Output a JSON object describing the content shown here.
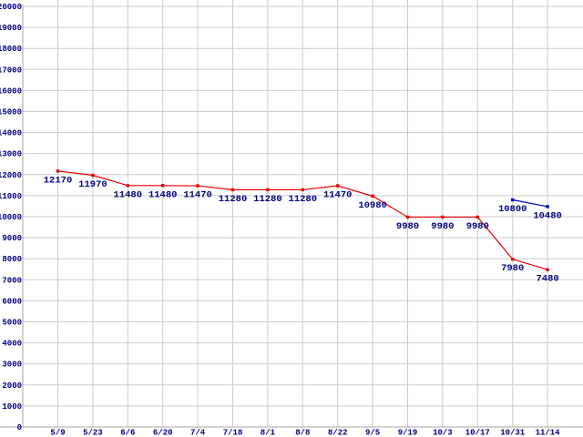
{
  "chart_style": {
    "background_color": "#ffffff",
    "grid_color": "#cbcbcb",
    "axis_color": "#a6a6a6",
    "label_color": "#000080"
  },
  "chart_data": {
    "type": "line",
    "title": "",
    "xlabel": "",
    "ylabel": "",
    "legend": "none",
    "grid": true,
    "show_point_labels": true,
    "categories": [
      "5/9",
      "5/23",
      "6/6",
      "6/20",
      "7/4",
      "7/18",
      "8/1",
      "8/8",
      "8/22",
      "9/5",
      "9/19",
      "10/3",
      "10/17",
      "10/31",
      "11/14"
    ],
    "series": [
      {
        "name": "series-1",
        "color": "#e60000",
        "marker": "square",
        "values": [
          12170,
          11970,
          11480,
          11480,
          11470,
          11280,
          11280,
          11280,
          11470,
          10980,
          9980,
          9980,
          9980,
          7980,
          7480
        ]
      },
      {
        "name": "series-2",
        "color": "#0000cc",
        "marker": "square",
        "values": [
          null,
          null,
          null,
          null,
          null,
          null,
          null,
          null,
          null,
          null,
          null,
          null,
          null,
          10800,
          10480
        ]
      }
    ],
    "ylim": [
      0,
      20000
    ],
    "ytick_step": 1000,
    "yticks": [
      0,
      1000,
      2000,
      3000,
      4000,
      5000,
      6000,
      7000,
      8000,
      9000,
      10000,
      11000,
      12000,
      13000,
      14000,
      15000,
      16000,
      17000,
      18000,
      19000,
      20000
    ]
  }
}
